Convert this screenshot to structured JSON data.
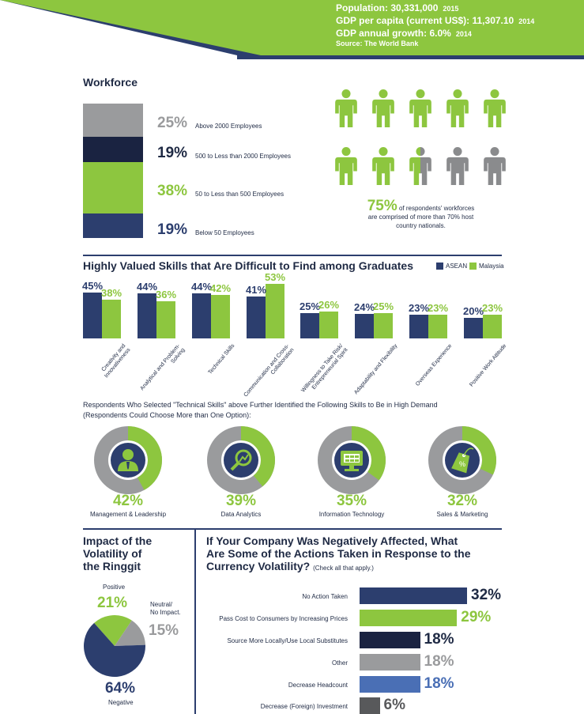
{
  "header": {
    "population_label": "Population:",
    "population_value": "30,331,000",
    "population_year": "2015",
    "gdp_label": "GDP per capita (current US$):",
    "gdp_value": "11,307.10",
    "gdp_year": "2014",
    "growth_label": "GDP annual growth:",
    "growth_value": "6.0%",
    "growth_year": "2014",
    "source": "Source: The World Bank",
    "colors": {
      "band_green": "#8dc63f",
      "band_dark": "#2c3e6e"
    }
  },
  "workforce": {
    "title": "Workforce",
    "segments": [
      {
        "pct": "25%",
        "label": "Above 2000 Employees",
        "color": "#9a9b9d"
      },
      {
        "pct": "19%",
        "label": "500 to Less than 2000 Employees",
        "color": "#1a2341"
      },
      {
        "pct": "38%",
        "label": "50 to Less than 500 Employees",
        "color": "#8dc63f"
      },
      {
        "pct": "19%",
        "label": "Below 50 Employees",
        "color": "#2c3e6e"
      }
    ],
    "people_icon": "person-icon",
    "people_green_fraction": 0.75,
    "callout_pct": "75%",
    "callout_text_1": " of respondents' workforces",
    "callout_text_2": "are comprised of more than 70% host",
    "callout_text_3": "country nationals."
  },
  "skills": {
    "title": "Highly Valued Skills that Are Difficult to Find among Graduates",
    "legend": [
      {
        "name": "ASEAN",
        "color": "#2c3e6e"
      },
      {
        "name": "Malaysia",
        "color": "#8dc63f"
      }
    ]
  },
  "chart_data": {
    "type": "bar",
    "categories": [
      "Creativity and Innovativeness",
      "Analytical and Problem-Solving",
      "Technical Skills",
      "Communication and Cross-Collaboration",
      "Willingness to Take Risk/ Entrepreneurial Spirit",
      "Adaptability and Flexibility",
      "Overseas Experience",
      "Positive Work Attitude"
    ],
    "series": [
      {
        "name": "ASEAN",
        "values": [
          45,
          44,
          44,
          41,
          25,
          24,
          23,
          20
        ],
        "labels": [
          "45%",
          "44%",
          "44%",
          "41%",
          "25%",
          "24%",
          "23%",
          "20%"
        ]
      },
      {
        "name": "Malaysia",
        "values": [
          38,
          36,
          42,
          53,
          26,
          25,
          23,
          23
        ],
        "labels": [
          "38%",
          "36%",
          "42%",
          "53%",
          "26%",
          "25%",
          "23%",
          "23%"
        ]
      }
    ],
    "ylim": [
      0,
      55
    ]
  },
  "technical": {
    "intro_1": "Respondents Who Selected \"Technical Skills\" above Further Identified the Following Skills to Be in High Demand",
    "intro_2": "(Respondents Could Choose More than One Option):",
    "items": [
      {
        "pct": "42%",
        "value": 42,
        "label": "Management & Leadership",
        "icon": "leader-icon"
      },
      {
        "pct": "39%",
        "value": 39,
        "label": "Data Analytics",
        "icon": "analytics-icon"
      },
      {
        "pct": "35%",
        "value": 35,
        "label": "Information Technology",
        "icon": "monitor-icon"
      },
      {
        "pct": "32%",
        "value": 32,
        "label": "Sales & Marketing",
        "icon": "price-tag-icon"
      }
    ]
  },
  "ringgit": {
    "title_1": "Impact of the",
    "title_2": "Volatility of",
    "title_3": "the Ringgit",
    "positive_label": "Positive",
    "positive_pct": "21%",
    "positive_value": 21,
    "neutral_label_1": "Neutral/",
    "neutral_label_2": "No Impact.",
    "neutral_pct": "15%",
    "neutral_value": 15,
    "negative_pct": "64%",
    "negative_value": 64,
    "negative_label": "Negative"
  },
  "actions": {
    "title_1": "If Your Company Was Negatively Affected, What",
    "title_2": "Are Some of the Actions Taken in Response to the",
    "title_3": "Currency Volatility?",
    "title_note": "(Check all that apply.)",
    "items": [
      {
        "label": "No Action Taken",
        "pct": "32%",
        "value": 32,
        "color": "#2c3e6e",
        "text_color": "#1f2a44"
      },
      {
        "label": "Pass Cost to Consumers by Increasing Prices",
        "pct": "29%",
        "value": 29,
        "color": "#8dc63f",
        "text_color": "#8dc63f"
      },
      {
        "label": "Source More Locally/Use Local Substitutes",
        "pct": "18%",
        "value": 18,
        "color": "#1a2341",
        "text_color": "#1f2a44"
      },
      {
        "label": "Other",
        "pct": "18%",
        "value": 18,
        "color": "#9a9b9d",
        "text_color": "#9a9b9d"
      },
      {
        "label": "Decrease Headcount",
        "pct": "18%",
        "value": 18,
        "color": "#4a6fb5",
        "text_color": "#4a6fb5"
      },
      {
        "label": "Decrease (Foreign) Investment",
        "pct": "6%",
        "value": 6,
        "color": "#58595b",
        "text_color": "#58595b"
      }
    ]
  }
}
